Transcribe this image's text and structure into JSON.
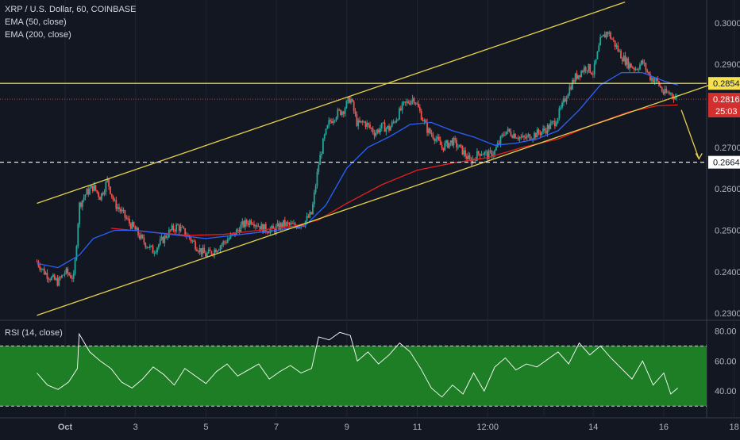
{
  "header": {
    "symbol_line": "XRP / U.S. Dollar, 60, COINBASE",
    "indicator_1": "EMA (50, close)",
    "indicator_2": "EMA (200, close)"
  },
  "rsi_panel": {
    "label": "RSI (14, close)"
  },
  "colors": {
    "background": "#131722",
    "up_candle": "#26a69a",
    "down_candle": "#ef5350",
    "ema50": "#2962ff",
    "ema200": "#e91e1e",
    "trend_line": "#e6d34a",
    "rsi_line": "#ffffff",
    "rsi_band": "#1e7e25",
    "price_tag_yellow": "#f5e050",
    "price_tag_red": "#d32f2f"
  },
  "chart_data": [
    {
      "type": "candlestick",
      "symbol": "XRP / U.S. Dollar",
      "interval": "60",
      "exchange": "COINBASE",
      "ylim": [
        0.2285,
        0.3055
      ],
      "y_ticks": [
        "0.3000",
        "0.2900",
        "0.2800",
        "0.2700",
        "0.2600",
        "0.2500",
        "0.2400",
        "0.2300"
      ],
      "x_ticks": [
        "Oct",
        "3",
        "5",
        "7",
        "9",
        "11",
        "12:00",
        "14",
        "16",
        "18"
      ],
      "x_range_days": [
        29.2,
        18.9
      ],
      "close_series": [
        [
          29.2,
          0.2425
        ],
        [
          29.4,
          0.24
        ],
        [
          29.6,
          0.2385
        ],
        [
          29.8,
          0.2375
        ],
        [
          30.0,
          0.24
        ],
        [
          30.25,
          0.2385
        ],
        [
          30.4,
          0.256
        ],
        [
          30.6,
          0.259
        ],
        [
          30.8,
          0.2605
        ],
        [
          31.0,
          0.258
        ],
        [
          31.2,
          0.262
        ],
        [
          31.4,
          0.2565
        ],
        [
          31.6,
          0.2545
        ],
        [
          31.8,
          0.252
        ],
        [
          32.0,
          0.25
        ],
        [
          32.2,
          0.2475
        ],
        [
          32.5,
          0.245
        ],
        [
          32.8,
          0.248
        ],
        [
          33.0,
          0.25
        ],
        [
          33.2,
          0.251
        ],
        [
          33.5,
          0.2485
        ],
        [
          33.8,
          0.2455
        ],
        [
          34.0,
          0.244
        ],
        [
          34.2,
          0.245
        ],
        [
          34.5,
          0.247
        ],
        [
          34.8,
          0.249
        ],
        [
          35.0,
          0.251
        ],
        [
          35.3,
          0.2525
        ],
        [
          35.6,
          0.2505
        ],
        [
          35.9,
          0.25
        ],
        [
          36.2,
          0.2515
        ],
        [
          36.5,
          0.251
        ],
        [
          36.8,
          0.252
        ],
        [
          37.0,
          0.254
        ],
        [
          37.2,
          0.266
        ],
        [
          37.35,
          0.272
        ],
        [
          37.5,
          0.276
        ],
        [
          37.7,
          0.278
        ],
        [
          37.9,
          0.279
        ],
        [
          38.1,
          0.282
        ],
        [
          38.3,
          0.2755
        ],
        [
          38.5,
          0.276
        ],
        [
          38.8,
          0.2735
        ],
        [
          39.0,
          0.275
        ],
        [
          39.2,
          0.2745
        ],
        [
          39.4,
          0.277
        ],
        [
          39.6,
          0.28
        ],
        [
          39.9,
          0.282
        ],
        [
          40.1,
          0.278
        ],
        [
          40.3,
          0.274
        ],
        [
          40.5,
          0.2725
        ],
        [
          40.7,
          0.27
        ],
        [
          41.0,
          0.2715
        ],
        [
          41.3,
          0.269
        ],
        [
          41.5,
          0.2665
        ],
        [
          41.8,
          0.269
        ],
        [
          42.0,
          0.268
        ],
        [
          42.2,
          0.269
        ],
        [
          42.5,
          0.274
        ],
        [
          42.8,
          0.273
        ],
        [
          43.0,
          0.272
        ],
        [
          43.3,
          0.273
        ],
        [
          43.6,
          0.274
        ],
        [
          43.9,
          0.276
        ],
        [
          44.1,
          0.2795
        ],
        [
          44.3,
          0.284
        ],
        [
          44.5,
          0.287
        ],
        [
          44.8,
          0.2895
        ],
        [
          45.0,
          0.288
        ],
        [
          45.2,
          0.2955
        ],
        [
          45.4,
          0.298
        ],
        [
          45.6,
          0.295
        ],
        [
          45.8,
          0.292
        ],
        [
          46.0,
          0.29
        ],
        [
          46.2,
          0.289
        ],
        [
          46.4,
          0.2905
        ],
        [
          46.6,
          0.287
        ],
        [
          46.8,
          0.286
        ],
        [
          47.0,
          0.283
        ],
        [
          47.2,
          0.283
        ],
        [
          47.4,
          0.2816
        ]
      ],
      "ema50_series": [
        [
          29.2,
          0.242
        ],
        [
          29.8,
          0.241
        ],
        [
          30.4,
          0.244
        ],
        [
          30.8,
          0.248
        ],
        [
          31.4,
          0.25
        ],
        [
          32.0,
          0.25
        ],
        [
          33.0,
          0.249
        ],
        [
          34.0,
          0.248
        ],
        [
          35.0,
          0.249
        ],
        [
          36.0,
          0.25
        ],
        [
          36.8,
          0.251
        ],
        [
          37.4,
          0.256
        ],
        [
          38.0,
          0.265
        ],
        [
          38.6,
          0.27
        ],
        [
          39.2,
          0.2725
        ],
        [
          39.8,
          0.2755
        ],
        [
          40.4,
          0.276
        ],
        [
          41.0,
          0.274
        ],
        [
          41.6,
          0.2725
        ],
        [
          42.2,
          0.2705
        ],
        [
          42.8,
          0.271
        ],
        [
          43.4,
          0.272
        ],
        [
          44.0,
          0.274
        ],
        [
          44.6,
          0.279
        ],
        [
          45.2,
          0.285
        ],
        [
          45.8,
          0.288
        ],
        [
          46.4,
          0.288
        ],
        [
          47.0,
          0.286
        ],
        [
          47.4,
          0.285
        ]
      ],
      "ema200_series": [
        [
          31.3,
          0.2505
        ],
        [
          32.5,
          0.2495
        ],
        [
          33.5,
          0.2488
        ],
        [
          34.5,
          0.249
        ],
        [
          35.5,
          0.25
        ],
        [
          36.5,
          0.251
        ],
        [
          37.2,
          0.2525
        ],
        [
          38.0,
          0.2565
        ],
        [
          39.0,
          0.261
        ],
        [
          40.0,
          0.2645
        ],
        [
          41.0,
          0.2662
        ],
        [
          42.0,
          0.2675
        ],
        [
          43.0,
          0.27
        ],
        [
          44.0,
          0.272
        ],
        [
          45.0,
          0.2755
        ],
        [
          46.0,
          0.2785
        ],
        [
          46.8,
          0.28
        ],
        [
          47.4,
          0.2802
        ]
      ],
      "price_levels": [
        {
          "price": "0.2854",
          "value": 0.2854,
          "style": "solid",
          "color": "yellow"
        },
        {
          "price": "0.2816",
          "value": 0.2816,
          "style": "dotted",
          "color": "red"
        },
        {
          "price": "0.2664",
          "value": 0.2664,
          "style": "dashed",
          "color": "white"
        }
      ],
      "countdown": "25:03",
      "trend_lines": [
        {
          "from": [
            29.2,
            0.2565
          ],
          "to": [
            45.9,
            0.305
          ]
        },
        {
          "from": [
            29.2,
            0.2295
          ],
          "to": [
            48.3,
            0.285
          ]
        }
      ],
      "projection_arrow": {
        "from": [
          47.5,
          0.279
        ],
        "to": [
          48.0,
          0.2672
        ]
      }
    },
    {
      "type": "line",
      "name": "RSI (14, close)",
      "ylim": [
        28,
        86
      ],
      "y_ticks": [
        "80.00",
        "60.00",
        "40.00"
      ],
      "band": [
        30,
        70
      ],
      "series": [
        [
          29.2,
          52
        ],
        [
          29.5,
          44
        ],
        [
          29.8,
          41
        ],
        [
          30.1,
          46
        ],
        [
          30.35,
          55
        ],
        [
          30.4,
          78
        ],
        [
          30.7,
          66
        ],
        [
          31.0,
          60
        ],
        [
          31.3,
          55
        ],
        [
          31.6,
          46
        ],
        [
          31.9,
          42
        ],
        [
          32.2,
          48
        ],
        [
          32.5,
          56
        ],
        [
          32.8,
          51
        ],
        [
          33.1,
          44
        ],
        [
          33.4,
          55
        ],
        [
          33.7,
          50
        ],
        [
          34.0,
          45
        ],
        [
          34.3,
          53
        ],
        [
          34.6,
          58
        ],
        [
          34.9,
          50
        ],
        [
          35.2,
          54
        ],
        [
          35.5,
          58
        ],
        [
          35.8,
          48
        ],
        [
          36.1,
          53
        ],
        [
          36.4,
          57
        ],
        [
          36.7,
          52
        ],
        [
          37.0,
          55
        ],
        [
          37.2,
          76
        ],
        [
          37.5,
          74
        ],
        [
          37.8,
          79
        ],
        [
          38.1,
          77
        ],
        [
          38.3,
          60
        ],
        [
          38.6,
          66
        ],
        [
          38.9,
          58
        ],
        [
          39.2,
          64
        ],
        [
          39.5,
          72
        ],
        [
          39.8,
          66
        ],
        [
          40.1,
          55
        ],
        [
          40.4,
          42
        ],
        [
          40.7,
          36
        ],
        [
          41.0,
          44
        ],
        [
          41.3,
          38
        ],
        [
          41.6,
          52
        ],
        [
          41.9,
          40
        ],
        [
          42.2,
          56
        ],
        [
          42.5,
          62
        ],
        [
          42.8,
          54
        ],
        [
          43.1,
          58
        ],
        [
          43.4,
          56
        ],
        [
          43.7,
          61
        ],
        [
          44.0,
          66
        ],
        [
          44.3,
          58
        ],
        [
          44.6,
          72
        ],
        [
          44.9,
          64
        ],
        [
          45.2,
          70
        ],
        [
          45.5,
          62
        ],
        [
          45.8,
          55
        ],
        [
          46.1,
          48
        ],
        [
          46.4,
          60
        ],
        [
          46.7,
          44
        ],
        [
          47.0,
          52
        ],
        [
          47.2,
          38
        ],
        [
          47.4,
          42
        ]
      ]
    }
  ]
}
